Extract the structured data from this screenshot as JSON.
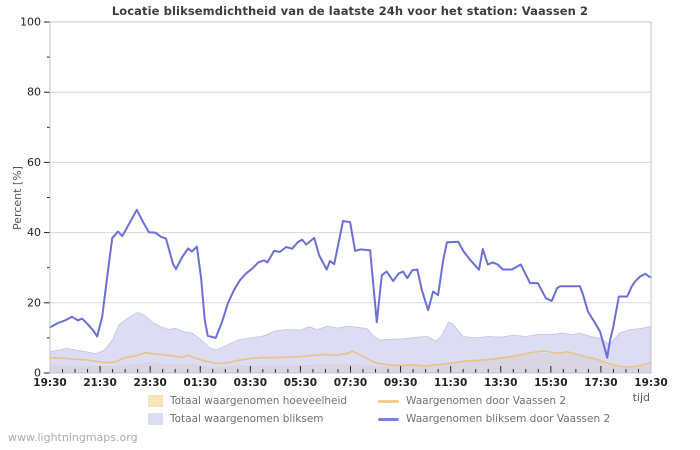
{
  "title": "Locatie bliksemdichtheid van de laatste 24h voor het station: Vaassen 2",
  "watermark": "www.lightningmaps.org",
  "y_axis": {
    "title": "Percent  [%]",
    "min": 0,
    "max": 100,
    "major_step": 20,
    "minor_step": 10,
    "tick_labels": [
      "0",
      "20",
      "40",
      "60",
      "80",
      "100"
    ]
  },
  "x_axis": {
    "title": "tijd",
    "range_minutes": 1440,
    "major_step_minutes": 120,
    "minor_step_minutes": 30,
    "tick_labels": [
      "19:30",
      "21:30",
      "23:30",
      "01:30",
      "03:30",
      "05:30",
      "07:30",
      "09:30",
      "11:30",
      "13:30",
      "15:30",
      "17:30",
      "19:30"
    ]
  },
  "colors": {
    "blue_line": "#6a70d6",
    "tan_line": "#e9c287",
    "purple_fill": "#d2d2ef",
    "purple_edge": "#c2c2e6",
    "tan_fill": "#f5deb3",
    "tan_edge": "#ecd3a6",
    "grid": "#d9d9d9",
    "border": "#c4c4c4",
    "tick": "#222222",
    "label": "#222222"
  },
  "legend": {
    "items": [
      {
        "label": "Totaal waargenomen hoeveelheid",
        "swatch": "box",
        "color": "#f8e3bb"
      },
      {
        "label": "Totaal waargenomen bliksem",
        "swatch": "box",
        "color": "#dcdcf5"
      },
      {
        "label": "Waargenomen door Vaassen 2",
        "swatch": "line",
        "color": "#f0cd92"
      },
      {
        "label": "Waargenomen bliksem door Vaassen 2",
        "swatch": "line",
        "color": "#7a80dc"
      }
    ]
  },
  "chart_data": {
    "type": "line",
    "title": "Locatie bliksemdichtheid van de laatste 24h voor het station: Vaassen 2",
    "xlabel": "tijd",
    "ylabel": "Percent [%]",
    "x_unit": "minutes since 19:30",
    "xlim": [
      0,
      1440
    ],
    "ylim": [
      0,
      100
    ],
    "grid": "horizontal-major",
    "legend_position": "below",
    "series": [
      {
        "name": "Totaal waargenomen hoeveelheid",
        "type": "area",
        "fill": "#f5deb3",
        "fill_opacity": 1,
        "stroke": "#ecd3a6",
        "points": [
          [
            0,
            2.2
          ],
          [
            60,
            2
          ],
          [
            120,
            1.8
          ],
          [
            180,
            2
          ],
          [
            240,
            2.9
          ],
          [
            270,
            2.2
          ],
          [
            330,
            2.6
          ],
          [
            390,
            1.4
          ],
          [
            450,
            2
          ],
          [
            540,
            2
          ],
          [
            630,
            2.2
          ],
          [
            720,
            2.4
          ],
          [
            780,
            1.8
          ],
          [
            840,
            1.7
          ],
          [
            900,
            2.2
          ],
          [
            960,
            2.9
          ],
          [
            1020,
            3.4
          ],
          [
            1080,
            4
          ],
          [
            1140,
            5
          ],
          [
            1185,
            5.4
          ],
          [
            1215,
            5
          ],
          [
            1245,
            5.5
          ],
          [
            1270,
            4.6
          ],
          [
            1300,
            4
          ],
          [
            1330,
            2.4
          ],
          [
            1360,
            1.5
          ],
          [
            1395,
            1.2
          ],
          [
            1420,
            1.8
          ],
          [
            1440,
            2.6
          ]
        ]
      },
      {
        "name": "Totaal waargenomen bliksem",
        "type": "area",
        "fill": "#d2d2ef",
        "fill_opacity": 0.78,
        "stroke": "#c2c2e6",
        "points": [
          [
            0,
            6
          ],
          [
            40,
            7
          ],
          [
            75,
            6.3
          ],
          [
            110,
            5.5
          ],
          [
            130,
            6.5
          ],
          [
            150,
            9.5
          ],
          [
            165,
            13.7
          ],
          [
            185,
            15.5
          ],
          [
            210,
            17.3
          ],
          [
            225,
            16.5
          ],
          [
            245,
            14.5
          ],
          [
            265,
            13.2
          ],
          [
            285,
            12.4
          ],
          [
            300,
            12.8
          ],
          [
            320,
            11.7
          ],
          [
            340,
            11.4
          ],
          [
            360,
            9.7
          ],
          [
            385,
            7
          ],
          [
            400,
            6.6
          ],
          [
            425,
            8
          ],
          [
            450,
            9.4
          ],
          [
            480,
            10
          ],
          [
            510,
            10.5
          ],
          [
            540,
            12
          ],
          [
            570,
            12.4
          ],
          [
            600,
            12.2
          ],
          [
            620,
            13.2
          ],
          [
            640,
            12.4
          ],
          [
            665,
            13.3
          ],
          [
            690,
            12.8
          ],
          [
            715,
            13.3
          ],
          [
            740,
            13
          ],
          [
            760,
            12.6
          ],
          [
            775,
            10.5
          ],
          [
            790,
            9.4
          ],
          [
            820,
            9.6
          ],
          [
            850,
            9.8
          ],
          [
            880,
            10.2
          ],
          [
            905,
            10.4
          ],
          [
            925,
            9
          ],
          [
            940,
            11
          ],
          [
            955,
            14.5
          ],
          [
            965,
            14
          ],
          [
            990,
            10.4
          ],
          [
            1020,
            10
          ],
          [
            1050,
            10.4
          ],
          [
            1080,
            10.2
          ],
          [
            1110,
            10.8
          ],
          [
            1140,
            10.4
          ],
          [
            1170,
            11
          ],
          [
            1200,
            10.9
          ],
          [
            1225,
            11.4
          ],
          [
            1250,
            10.9
          ],
          [
            1270,
            11.4
          ],
          [
            1295,
            10.4
          ],
          [
            1320,
            9.9
          ],
          [
            1340,
            8
          ],
          [
            1365,
            11.4
          ],
          [
            1390,
            12.3
          ],
          [
            1420,
            12.8
          ],
          [
            1440,
            13.3
          ]
        ]
      },
      {
        "name": "Waargenomen door Vaassen 2",
        "type": "line",
        "stroke": "#e9c287",
        "stroke_width": 1.6,
        "points": [
          [
            0,
            4.4
          ],
          [
            30,
            4.2
          ],
          [
            60,
            3.9
          ],
          [
            90,
            3.7
          ],
          [
            105,
            3.4
          ],
          [
            130,
            3
          ],
          [
            150,
            3
          ],
          [
            165,
            3.6
          ],
          [
            180,
            4.4
          ],
          [
            210,
            5
          ],
          [
            228,
            5.8
          ],
          [
            245,
            5.5
          ],
          [
            270,
            5.2
          ],
          [
            300,
            4.8
          ],
          [
            315,
            4.4
          ],
          [
            330,
            5
          ],
          [
            345,
            4.4
          ],
          [
            375,
            3.3
          ],
          [
            400,
            2.7
          ],
          [
            430,
            3
          ],
          [
            450,
            3.6
          ],
          [
            480,
            4.1
          ],
          [
            510,
            4.4
          ],
          [
            540,
            4.4
          ],
          [
            570,
            4.5
          ],
          [
            600,
            4.7
          ],
          [
            630,
            5
          ],
          [
            660,
            5.3
          ],
          [
            680,
            5
          ],
          [
            710,
            5.5
          ],
          [
            725,
            6.2
          ],
          [
            745,
            5
          ],
          [
            765,
            3.8
          ],
          [
            780,
            2.9
          ],
          [
            810,
            2.3
          ],
          [
            840,
            2.1
          ],
          [
            870,
            2.3
          ],
          [
            900,
            2
          ],
          [
            930,
            2.4
          ],
          [
            960,
            2.8
          ],
          [
            990,
            3.3
          ],
          [
            1020,
            3.6
          ],
          [
            1050,
            3.8
          ],
          [
            1080,
            4.3
          ],
          [
            1110,
            4.8
          ],
          [
            1140,
            5.5
          ],
          [
            1165,
            6
          ],
          [
            1185,
            6.3
          ],
          [
            1205,
            5.8
          ],
          [
            1220,
            5.6
          ],
          [
            1240,
            6
          ],
          [
            1260,
            5.4
          ],
          [
            1285,
            4.6
          ],
          [
            1310,
            3.9
          ],
          [
            1330,
            3
          ],
          [
            1350,
            2.3
          ],
          [
            1370,
            1.8
          ],
          [
            1395,
            1.7
          ],
          [
            1415,
            2.1
          ],
          [
            1430,
            2.7
          ],
          [
            1440,
            3
          ]
        ]
      },
      {
        "name": "Waargenomen bliksem door Vaassen 2",
        "type": "line",
        "stroke": "#6a70d6",
        "stroke_width": 2,
        "points": [
          [
            0,
            13
          ],
          [
            18,
            14.2
          ],
          [
            36,
            15
          ],
          [
            53,
            16
          ],
          [
            67,
            15
          ],
          [
            77,
            15.5
          ],
          [
            91,
            13.8
          ],
          [
            103,
            12.2
          ],
          [
            113,
            10.4
          ],
          [
            125,
            16
          ],
          [
            137,
            27.4
          ],
          [
            149,
            38.4
          ],
          [
            163,
            40.3
          ],
          [
            173,
            39
          ],
          [
            192,
            43
          ],
          [
            208,
            46.5
          ],
          [
            223,
            43
          ],
          [
            237,
            40.1
          ],
          [
            252,
            40
          ],
          [
            266,
            38.8
          ],
          [
            278,
            38.3
          ],
          [
            295,
            31
          ],
          [
            302,
            29.6
          ],
          [
            316,
            32.9
          ],
          [
            331,
            35.5
          ],
          [
            340,
            34.6
          ],
          [
            352,
            36
          ],
          [
            362,
            27
          ],
          [
            371,
            15
          ],
          [
            378,
            10.6
          ],
          [
            397,
            10
          ],
          [
            412,
            14.5
          ],
          [
            426,
            19.8
          ],
          [
            441,
            23.7
          ],
          [
            455,
            26.4
          ],
          [
            470,
            28.4
          ],
          [
            484,
            29.7
          ],
          [
            499,
            31.5
          ],
          [
            513,
            32.1
          ],
          [
            521,
            31.5
          ],
          [
            537,
            34.8
          ],
          [
            551,
            34.5
          ],
          [
            566,
            35.9
          ],
          [
            580,
            35.4
          ],
          [
            594,
            37.3
          ],
          [
            604,
            38
          ],
          [
            614,
            36.6
          ],
          [
            633,
            38.5
          ],
          [
            645,
            33.5
          ],
          [
            663,
            29.5
          ],
          [
            671,
            31.9
          ],
          [
            681,
            31
          ],
          [
            702,
            43.3
          ],
          [
            719,
            43
          ],
          [
            731,
            34.8
          ],
          [
            743,
            35.2
          ],
          [
            767,
            35
          ],
          [
            783,
            14.5
          ],
          [
            795,
            27.9
          ],
          [
            807,
            28.9
          ],
          [
            822,
            26.2
          ],
          [
            836,
            28.4
          ],
          [
            846,
            28.9
          ],
          [
            856,
            27
          ],
          [
            868,
            29.3
          ],
          [
            880,
            29.5
          ],
          [
            891,
            23.6
          ],
          [
            906,
            17.9
          ],
          [
            918,
            23.2
          ],
          [
            930,
            22.2
          ],
          [
            942,
            32.2
          ],
          [
            951,
            37.2
          ],
          [
            978,
            37.4
          ],
          [
            990,
            34.8
          ],
          [
            1006,
            32.3
          ],
          [
            1028,
            29.4
          ],
          [
            1037,
            35.3
          ],
          [
            1049,
            30.9
          ],
          [
            1061,
            31.5
          ],
          [
            1073,
            30.9
          ],
          [
            1085,
            29.5
          ],
          [
            1107,
            29.5
          ],
          [
            1128,
            30.9
          ],
          [
            1150,
            25.6
          ],
          [
            1169,
            25.6
          ],
          [
            1188,
            21.3
          ],
          [
            1202,
            20.5
          ],
          [
            1215,
            24.2
          ],
          [
            1222,
            24.7
          ],
          [
            1270,
            24.7
          ],
          [
            1277,
            22.3
          ],
          [
            1289,
            17.5
          ],
          [
            1306,
            14.2
          ],
          [
            1318,
            11.8
          ],
          [
            1335,
            4.4
          ],
          [
            1342,
            9.4
          ],
          [
            1349,
            12.8
          ],
          [
            1363,
            21.8
          ],
          [
            1383,
            21.8
          ],
          [
            1394,
            24.7
          ],
          [
            1402,
            26.1
          ],
          [
            1414,
            27.5
          ],
          [
            1426,
            28.3
          ],
          [
            1435,
            27.5
          ],
          [
            1440,
            27.3
          ]
        ]
      }
    ]
  }
}
